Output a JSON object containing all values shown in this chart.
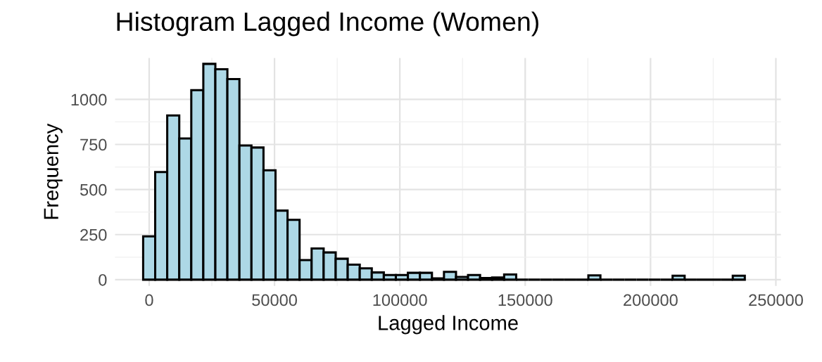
{
  "chart_data": {
    "type": "histogram",
    "title": "Histogram Lagged Income (Women)",
    "xlabel": "Lagged Income",
    "ylabel": "Frequency",
    "bins": [
      -2400,
      2400,
      7200,
      12000,
      16800,
      21600,
      26400,
      31200,
      36000,
      40800,
      45600,
      50400,
      55200,
      60000,
      64800,
      69600,
      74400,
      79200,
      84000,
      88800,
      93600,
      98400,
      103200,
      108000,
      112800,
      117600,
      122400,
      127200,
      132000,
      136800,
      141600,
      146400,
      151200,
      156000,
      160800,
      165600,
      170400,
      175200,
      180000,
      184800,
      189600,
      194400,
      199200,
      204000,
      208800,
      213600,
      218400,
      223200,
      228000,
      232800,
      237600
    ],
    "values": [
      240,
      597,
      911,
      783,
      1051,
      1197,
      1167,
      1113,
      744,
      733,
      607,
      383,
      332,
      109,
      173,
      151,
      116,
      83,
      63,
      40,
      26,
      26,
      38,
      38,
      7,
      43,
      15,
      26,
      9,
      12,
      29,
      0,
      0,
      0,
      0,
      0,
      0,
      24,
      0,
      0,
      0,
      0,
      0,
      0,
      22,
      0,
      0,
      0,
      0,
      22
    ],
    "color": "#add8e6",
    "xlim": [
      -13600,
      252000
    ],
    "ylim": [
      -35,
      1230
    ],
    "xticks": [
      0,
      50000,
      100000,
      150000,
      200000,
      250000
    ],
    "yticks": [
      0,
      250,
      500,
      750,
      1000
    ],
    "grid": true
  }
}
